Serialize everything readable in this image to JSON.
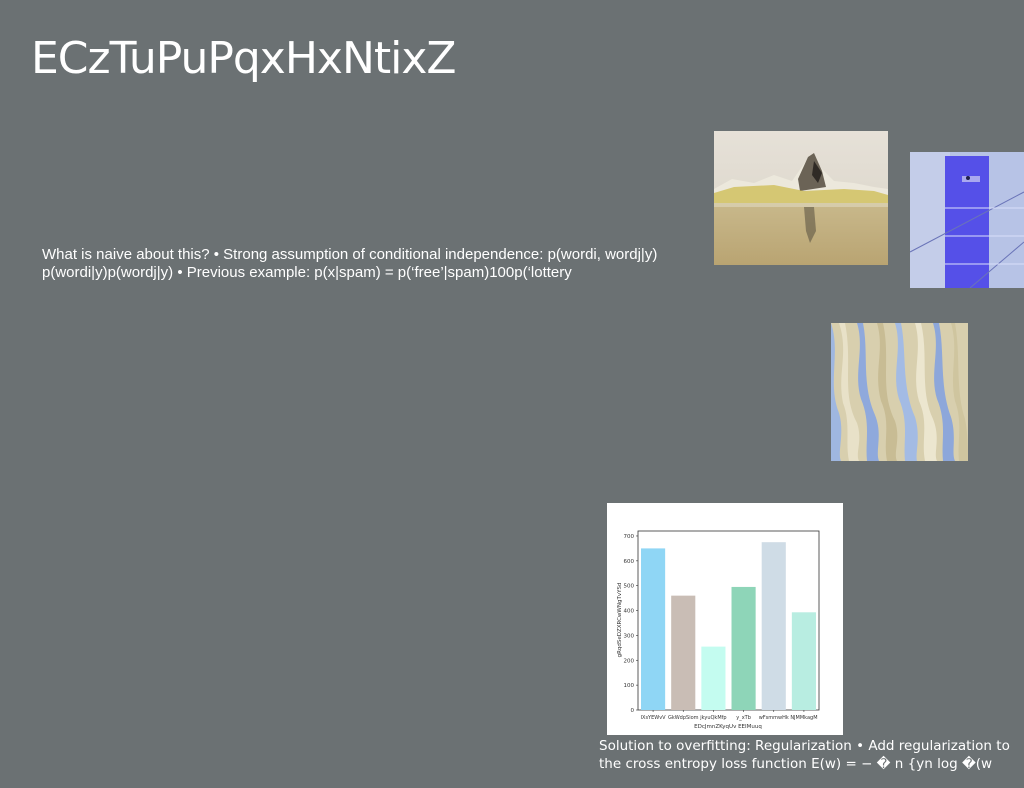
{
  "slide": {
    "title": "ECzTuPuPqxHxNtixZ",
    "body_text": "What is naive about this? • Strong assumption of conditional independence: p(wordi, wordj|y) p(wordi|y)p(wordj|y) • Previous example: p(x|spam) = p(‘free’|spam)100p(‘lottery",
    "caption": "Solution to overfitting: Regularization • Add regularization to the cross entropy loss function E(w) = − � n {yn log �(w"
  },
  "images": [
    {
      "name": "iceberg-photo",
      "desc_icon": "landscape-photo-icon"
    },
    {
      "name": "blue-document-photo",
      "desc_icon": "abstract-photo-icon"
    },
    {
      "name": "wavy-abstract-photo",
      "desc_icon": "abstract-photo-icon"
    }
  ],
  "chart_data": {
    "type": "bar",
    "categories": [
      "IXsYEWvV",
      "GkWdpSiom",
      "jkyuQkMfp",
      "y_xTb",
      "wFsmmwHk",
      "NJMMkagM"
    ],
    "values": [
      650,
      460,
      255,
      495,
      675,
      393
    ],
    "colors": [
      "#8fd6f5",
      "#c9bdb5",
      "#c4fcf0",
      "#8ed5b8",
      "#cfdce6",
      "#b8ede1"
    ],
    "title": "",
    "xlabel": "EDcJmnZKyqUv EEIMuuq",
    "ylabel": "gRqdSeDZXRCwWNgTvYSd",
    "ylim": [
      0,
      720
    ],
    "yticks": [
      0,
      100,
      200,
      300,
      400,
      500,
      600,
      700
    ],
    "grid": false
  }
}
